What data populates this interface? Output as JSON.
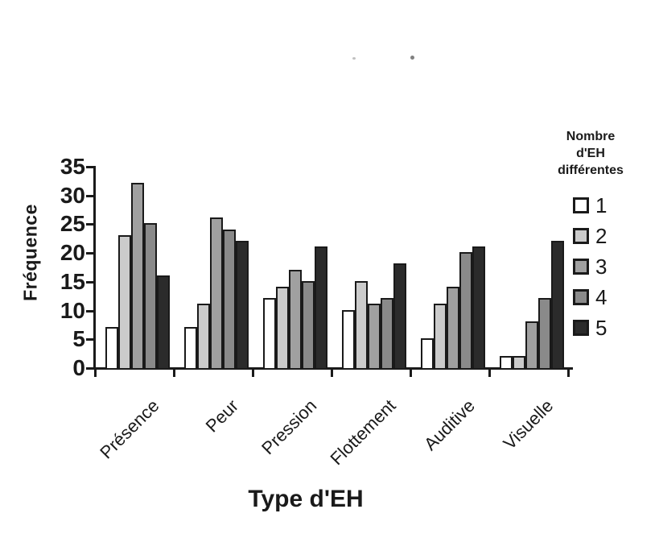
{
  "chart_data": {
    "type": "bar",
    "title": "",
    "xlabel": "Type d'EH",
    "ylabel": "Fréquence",
    "ylim": [
      0,
      35
    ],
    "yticks": [
      0,
      5,
      10,
      15,
      20,
      25,
      30,
      35
    ],
    "grid": false,
    "legend_position": "right",
    "legend_title": "Nombre d'EH différentes",
    "categories": [
      "Présence",
      "Peur",
      "Pression",
      "Flottement",
      "Auditive",
      "Visuelle"
    ],
    "series": [
      {
        "name": "1",
        "color": "#ffffff",
        "values": [
          7,
          7,
          12,
          10,
          5,
          2
        ]
      },
      {
        "name": "2",
        "color": "#cbcbcb",
        "values": [
          23,
          11,
          14,
          15,
          11,
          2
        ]
      },
      {
        "name": "3",
        "color": "#a0a0a0",
        "values": [
          32,
          26,
          17,
          11,
          14,
          8
        ]
      },
      {
        "name": "4",
        "color": "#8a8a8a",
        "values": [
          25,
          24,
          15,
          12,
          20,
          12
        ]
      },
      {
        "name": "5",
        "color": "#2b2b2b",
        "values": [
          16,
          22,
          21,
          18,
          21,
          22
        ]
      }
    ],
    "axis_color": "#1a1a1a"
  }
}
